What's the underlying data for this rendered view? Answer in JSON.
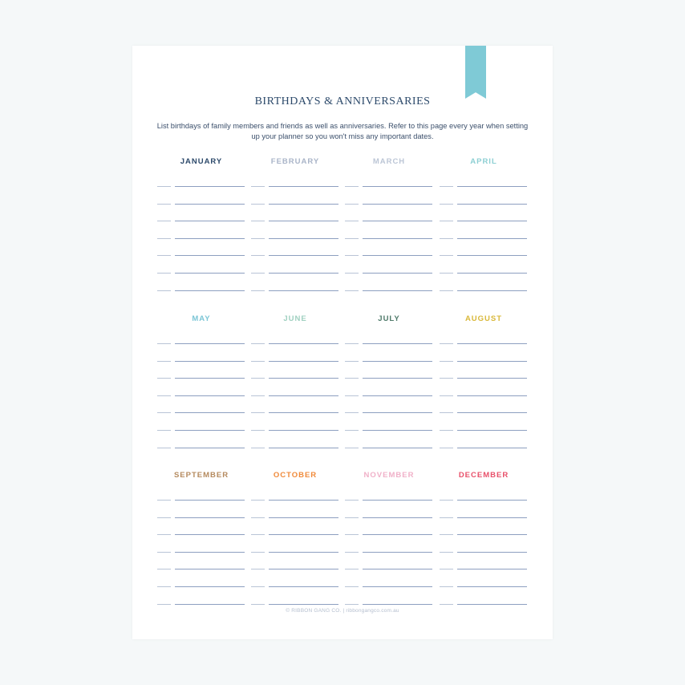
{
  "title": "BIRTHDAYS & ANNIVERSARIES",
  "intro": "List birthdays of family members and friends as well as anniversaries. Refer to this page every year when setting up your planner so you won't miss any important dates.",
  "months": [
    {
      "name": "JANUARY",
      "color": "#2d4a6b"
    },
    {
      "name": "FEBRUARY",
      "color": "#a9b4c8"
    },
    {
      "name": "MARCH",
      "color": "#bcc6d6"
    },
    {
      "name": "APRIL",
      "color": "#8ccfd3"
    },
    {
      "name": "MAY",
      "color": "#7cc6d6"
    },
    {
      "name": "JUNE",
      "color": "#9fd0c0"
    },
    {
      "name": "JULY",
      "color": "#4f7a6a"
    },
    {
      "name": "AUGUST",
      "color": "#d9b83a"
    },
    {
      "name": "SEPTEMBER",
      "color": "#b58a5e"
    },
    {
      "name": "OCTOBER",
      "color": "#f08a3a"
    },
    {
      "name": "NOVEMBER",
      "color": "#f0b0c8"
    },
    {
      "name": "DECEMBER",
      "color": "#e8506a"
    }
  ],
  "footer": "© RIBBON GANG CO.   |   ribbongangco.com.au",
  "ribbon_color": "#7fcad6"
}
